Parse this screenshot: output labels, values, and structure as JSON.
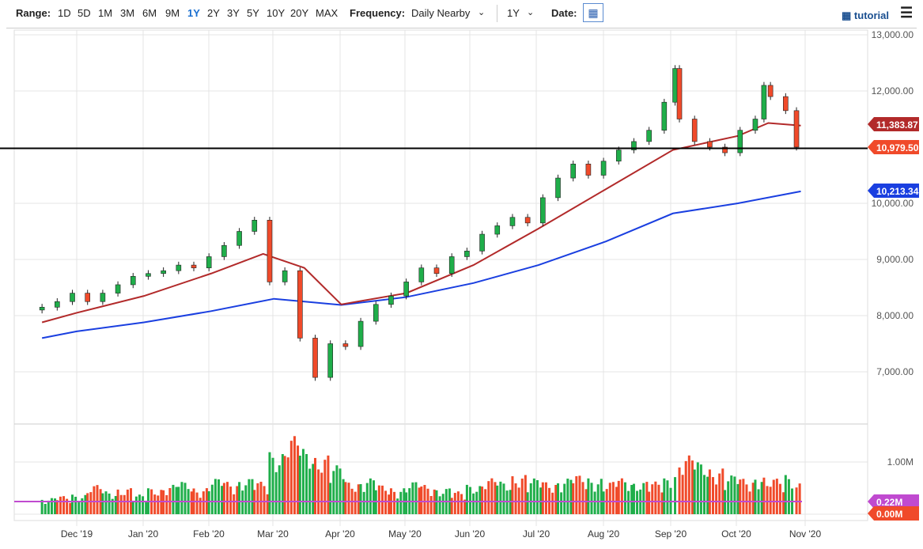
{
  "toolbar": {
    "range_label": "Range:",
    "ranges": [
      "1D",
      "5D",
      "1M",
      "3M",
      "6M",
      "9M",
      "1Y",
      "2Y",
      "3Y",
      "5Y",
      "10Y",
      "20Y",
      "MAX"
    ],
    "active_range": "1Y",
    "frequency_label": "Frequency:",
    "frequency_value": "Daily Nearby",
    "period_value": "1Y",
    "date_label": "Date:",
    "tutorial_label": "tutorial",
    "calendar_icon": "calendar-icon",
    "menu_icon": "hamburger-icon"
  },
  "colors": {
    "up": "#1fae4a",
    "down": "#f04a2a",
    "ma50": "#b22a2a",
    "ma200": "#1a3fe0",
    "last": "#f04a2a",
    "vol_ma": "#c04ad0"
  },
  "chart_data": {
    "type": "candlestick",
    "x_ticks": [
      "Dec '19",
      "Jan '20",
      "Feb '20",
      "Mar '20",
      "Apr '20",
      "May '20",
      "Jun '20",
      "Jul '20",
      "Aug '20",
      "Sep '20",
      "Oct '20",
      "Nov '20"
    ],
    "y_ticks": [
      "13,000.00",
      "12,000.00",
      "10,000.00",
      "9,000.00",
      "8,000.00",
      "7,000.00"
    ],
    "ylim": [
      6300,
      13000
    ],
    "vol_ticks": [
      "1.00M"
    ],
    "badges": {
      "ma50": "11,383.87",
      "last": "10,979.50",
      "ma200": "10,213.34",
      "vol_ma": "0.22M",
      "vol_last": "0.00M"
    },
    "last_price": 10979.5,
    "candles": [
      [
        "2019-11-15",
        8150,
        0.25
      ],
      [
        "2019-11-22",
        8250,
        0.28
      ],
      [
        "2019-11-29",
        8400,
        0.3
      ],
      [
        "2019-12-06",
        8250,
        0.45
      ],
      [
        "2019-12-13",
        8400,
        0.35
      ],
      [
        "2019-12-20",
        8550,
        0.4
      ],
      [
        "2019-12-27",
        8700,
        0.3
      ],
      [
        "2020-01-03",
        8750,
        0.4
      ],
      [
        "2020-01-10",
        8800,
        0.45
      ],
      [
        "2020-01-17",
        8900,
        0.5
      ],
      [
        "2020-01-24",
        8850,
        0.4
      ],
      [
        "2020-01-31",
        9050,
        0.55
      ],
      [
        "2020-02-07",
        9250,
        0.5
      ],
      [
        "2020-02-14",
        9500,
        0.55
      ],
      [
        "2020-02-21",
        9700,
        0.5
      ],
      [
        "2020-02-28",
        8600,
        0.95
      ],
      [
        "2020-03-06",
        8800,
        1.2
      ],
      [
        "2020-03-13",
        7600,
        1.0
      ],
      [
        "2020-03-20",
        6900,
        0.9
      ],
      [
        "2020-03-27",
        7500,
        0.75
      ],
      [
        "2020-04-03",
        7450,
        0.5
      ],
      [
        "2020-04-10",
        7900,
        0.55
      ],
      [
        "2020-04-17",
        8200,
        0.45
      ],
      [
        "2020-04-24",
        8350,
        0.4
      ],
      [
        "2020-05-01",
        8600,
        0.5
      ],
      [
        "2020-05-08",
        8850,
        0.45
      ],
      [
        "2020-05-15",
        8750,
        0.4
      ],
      [
        "2020-05-22",
        9050,
        0.35
      ],
      [
        "2020-05-29",
        9150,
        0.45
      ],
      [
        "2020-06-05",
        9450,
        0.55
      ],
      [
        "2020-06-12",
        9600,
        0.5
      ],
      [
        "2020-06-19",
        9750,
        0.6
      ],
      [
        "2020-06-26",
        9650,
        0.55
      ],
      [
        "2020-07-03",
        10100,
        0.5
      ],
      [
        "2020-07-10",
        10450,
        0.55
      ],
      [
        "2020-07-17",
        10700,
        0.6
      ],
      [
        "2020-07-24",
        10500,
        0.55
      ],
      [
        "2020-07-31",
        10750,
        0.5
      ],
      [
        "2020-08-07",
        10950,
        0.55
      ],
      [
        "2020-08-14",
        11100,
        0.5
      ],
      [
        "2020-08-21",
        11300,
        0.5
      ],
      [
        "2020-08-28",
        11800,
        0.55
      ],
      [
        "2020-09-02",
        12400,
        0.75
      ],
      [
        "2020-09-04",
        11500,
        0.9
      ],
      [
        "2020-09-11",
        11100,
        0.8
      ],
      [
        "2020-09-18",
        11000,
        0.7
      ],
      [
        "2020-09-25",
        10900,
        0.6
      ],
      [
        "2020-10-02",
        11300,
        0.55
      ],
      [
        "2020-10-09",
        11500,
        0.6
      ],
      [
        "2020-10-13",
        12100,
        0.6
      ],
      [
        "2020-10-16",
        11900,
        0.55
      ],
      [
        "2020-10-23",
        11650,
        0.6
      ],
      [
        "2020-10-28",
        11000,
        0.6
      ]
    ],
    "ma50": [
      [
        "2019-11-15",
        7880
      ],
      [
        "2019-12-01",
        8050
      ],
      [
        "2020-01-01",
        8350
      ],
      [
        "2020-02-01",
        8750
      ],
      [
        "2020-02-25",
        9100
      ],
      [
        "2020-03-15",
        8850
      ],
      [
        "2020-04-01",
        8200
      ],
      [
        "2020-05-01",
        8400
      ],
      [
        "2020-06-01",
        8900
      ],
      [
        "2020-07-01",
        9550
      ],
      [
        "2020-08-01",
        10250
      ],
      [
        "2020-09-01",
        10950
      ],
      [
        "2020-10-01",
        11200
      ],
      [
        "2020-10-15",
        11430
      ],
      [
        "2020-10-30",
        11384
      ]
    ],
    "ma200": [
      [
        "2019-11-15",
        7600
      ],
      [
        "2019-12-01",
        7720
      ],
      [
        "2020-01-01",
        7880
      ],
      [
        "2020-02-01",
        8080
      ],
      [
        "2020-03-01",
        8300
      ],
      [
        "2020-04-01",
        8190
      ],
      [
        "2020-05-01",
        8330
      ],
      [
        "2020-06-01",
        8580
      ],
      [
        "2020-07-01",
        8900
      ],
      [
        "2020-08-01",
        9320
      ],
      [
        "2020-09-01",
        9820
      ],
      [
        "2020-10-01",
        10000
      ],
      [
        "2020-10-30",
        10213
      ]
    ]
  }
}
